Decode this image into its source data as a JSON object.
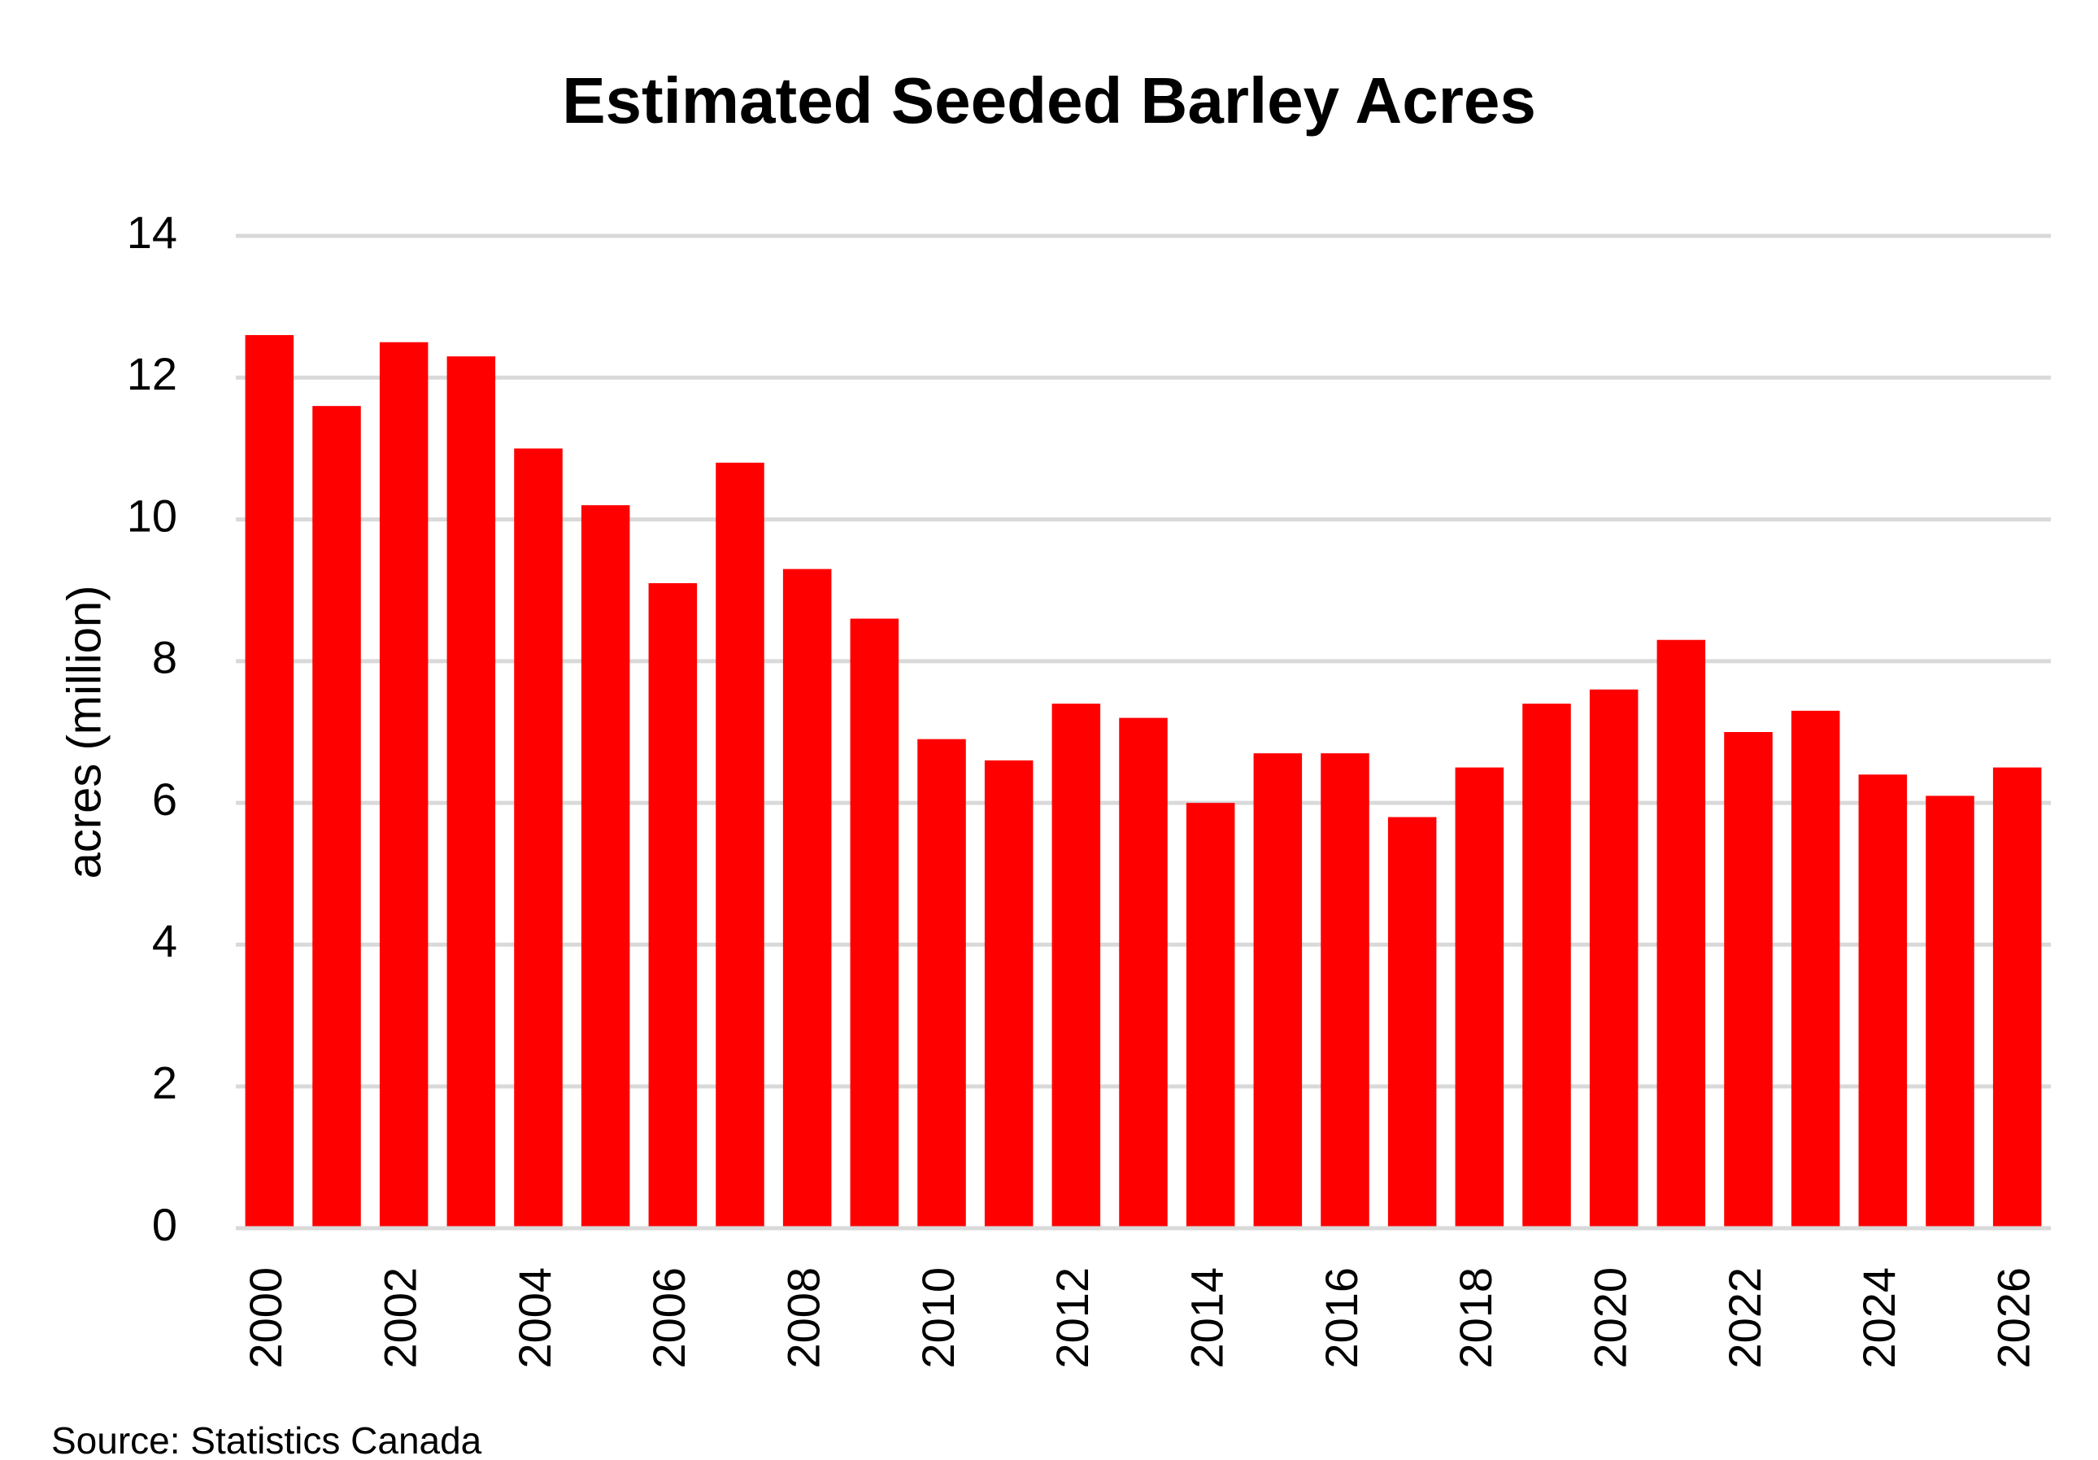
{
  "chart_data": {
    "type": "bar",
    "title": "Estimated Seeded Barley Acres",
    "y_label": "acres (million)",
    "source": "Source: Statistics Canada",
    "categories": [
      "2000",
      null,
      "2002",
      null,
      "2004",
      null,
      "2006",
      null,
      "2008",
      null,
      "2010",
      null,
      "2012",
      null,
      "2014",
      null,
      "2016",
      null,
      "2018",
      null,
      "2020",
      null,
      "2022",
      null,
      "2024",
      null,
      "2026"
    ],
    "values": [
      12.6,
      11.6,
      12.5,
      12.3,
      11.0,
      10.2,
      9.1,
      10.8,
      9.3,
      8.6,
      6.9,
      6.6,
      7.4,
      7.2,
      6.0,
      6.7,
      6.7,
      5.8,
      6.5,
      7.4,
      7.6,
      8.3,
      7.0,
      7.3,
      6.4,
      6.1,
      6.5
    ],
    "color": "#ff0000",
    "ylim": [
      0,
      14
    ],
    "yticks": [
      0,
      2,
      4,
      6,
      8,
      10,
      12,
      14
    ],
    "grid": true
  }
}
